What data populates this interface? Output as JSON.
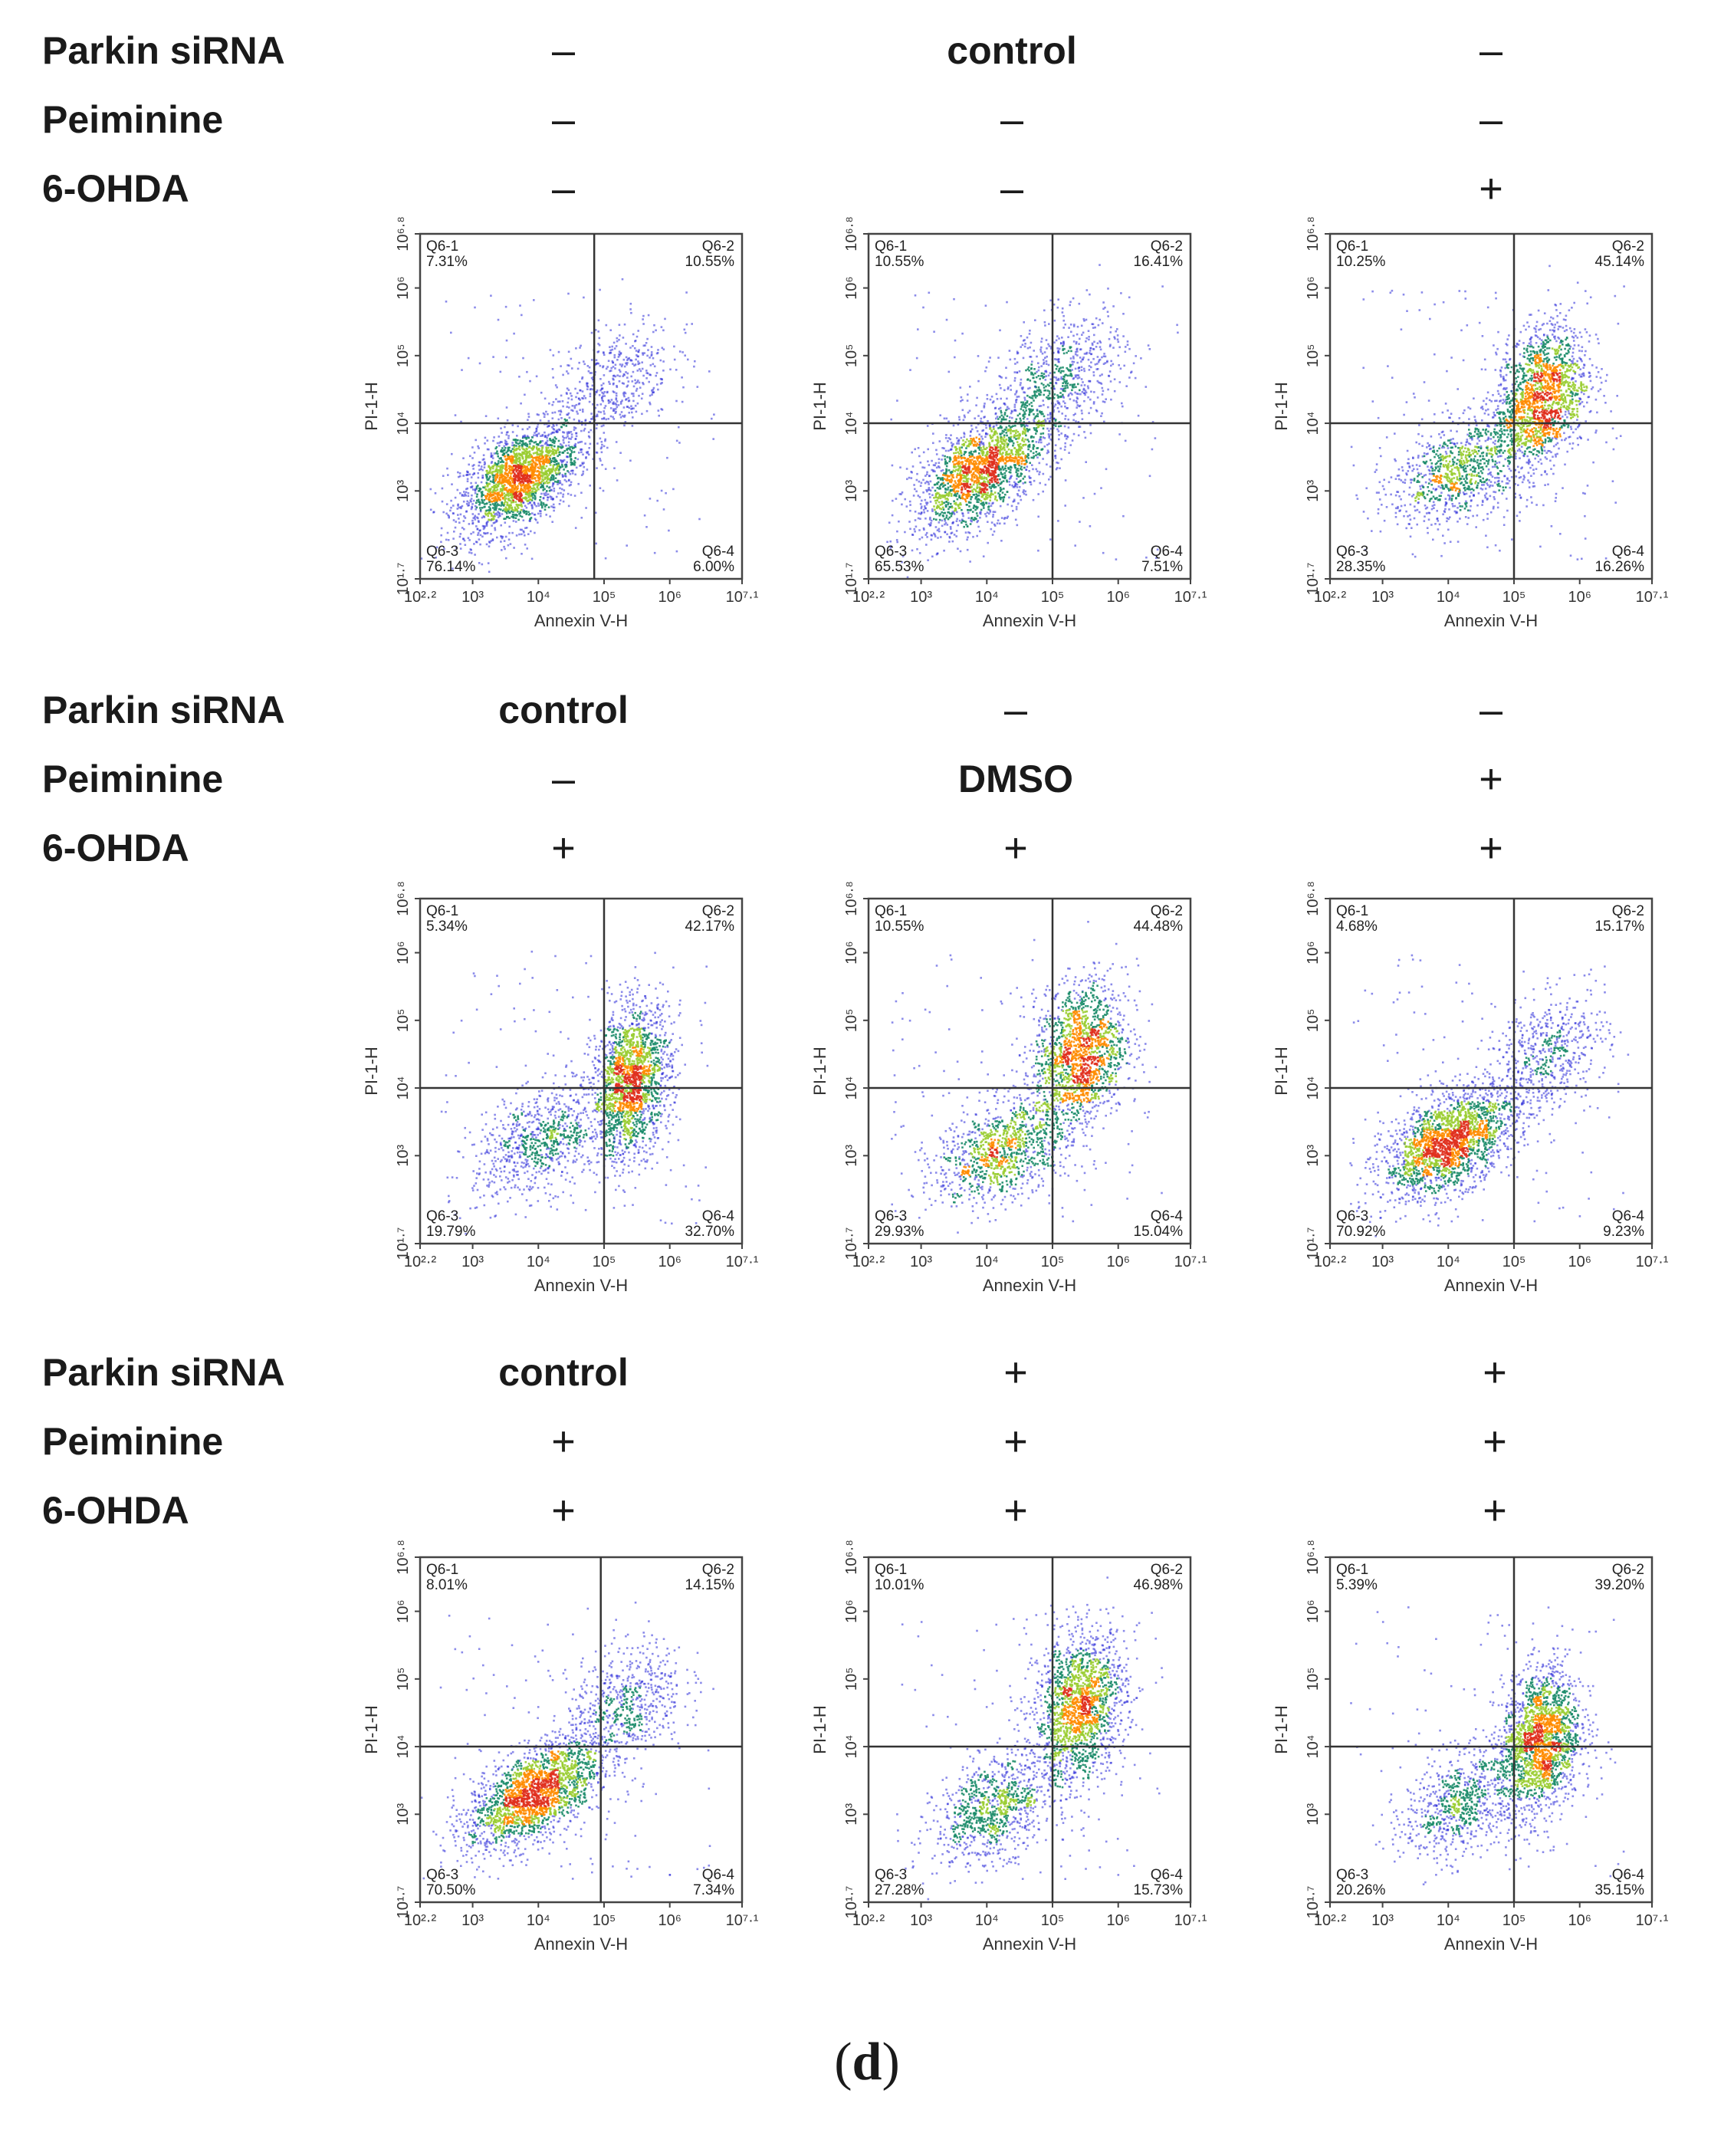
{
  "caption": "d",
  "conditions": {
    "row_labels": [
      "Parkin siRNA",
      "Peiminine",
      "6-OHDA"
    ],
    "groups": [
      [
        [
          "–",
          "–",
          "–"
        ],
        [
          "control",
          "–",
          "–"
        ],
        [
          "–",
          "–",
          "+"
        ]
      ],
      [
        [
          "control",
          "–",
          "+"
        ],
        [
          "–",
          "DMSO",
          "+"
        ],
        [
          "–",
          "+",
          "+"
        ]
      ],
      [
        [
          "control",
          "+",
          "+"
        ],
        [
          "+",
          "+",
          "+"
        ],
        [
          "+",
          "+",
          "+"
        ]
      ]
    ]
  },
  "chart_data": {
    "type": "scatter",
    "subtype": "flow-cytometry-density",
    "xlabel": "Annexin V-H",
    "ylabel": "PI-1-H",
    "x_log_range": [
      2.2,
      7.1
    ],
    "y_log_range": [
      1.7,
      6.8
    ],
    "x_ticks": [
      2.2,
      3,
      4,
      5,
      6,
      7.1
    ],
    "y_ticks": [
      1.7,
      3,
      4,
      5,
      6,
      6.8
    ],
    "x_tick_labels": [
      "10²·²",
      "10³",
      "10⁴",
      "10⁵",
      "10⁶",
      "10⁷·¹"
    ],
    "y_tick_labels": [
      "10¹·⁷",
      "10³",
      "10⁴",
      "10⁵",
      "10⁶",
      "10⁶·⁸"
    ],
    "gate_x_log": 5.0,
    "gate_y_log": 4.0,
    "quadrant_names": [
      "Q6-1",
      "Q6-2",
      "Q6-3",
      "Q6-4"
    ],
    "density_colors": [
      "#2b2bd8",
      "#1c8c6a",
      "#9acd32",
      "#ff8c00",
      "#e0301e"
    ],
    "plots": [
      {
        "q1": "7.31%",
        "q2": "10.55%",
        "q3": "76.14%",
        "q4": "6.00%",
        "x_gate": 4.85,
        "y_gate": 4.0,
        "clusters": [
          {
            "x": 3.7,
            "y": 3.2,
            "sx": 0.45,
            "sy": 0.4,
            "rho": 0.5,
            "w": 0.82
          },
          {
            "x": 5.1,
            "y": 4.6,
            "sx": 0.45,
            "sy": 0.45,
            "rho": 0.4,
            "w": 0.18
          }
        ]
      },
      {
        "q1": "10.55%",
        "q2": "16.41%",
        "q3": "65.53%",
        "q4": "7.51%",
        "x_gate": 5.0,
        "y_gate": 4.0,
        "clusters": [
          {
            "x": 3.9,
            "y": 3.3,
            "sx": 0.5,
            "sy": 0.45,
            "rho": 0.55,
            "w": 0.72
          },
          {
            "x": 5.1,
            "y": 4.6,
            "sx": 0.5,
            "sy": 0.5,
            "rho": 0.4,
            "w": 0.28
          }
        ]
      },
      {
        "q1": "10.25%",
        "q2": "45.14%",
        "q3": "28.35%",
        "q4": "16.26%",
        "x_gate": 5.0,
        "y_gate": 4.0,
        "clusters": [
          {
            "x": 4.1,
            "y": 3.3,
            "sx": 0.5,
            "sy": 0.4,
            "rho": 0.4,
            "w": 0.35
          },
          {
            "x": 5.4,
            "y": 4.4,
            "sx": 0.35,
            "sy": 0.55,
            "rho": 0.3,
            "w": 0.65
          }
        ]
      },
      {
        "q1": "5.34%",
        "q2": "42.17%",
        "q3": "19.79%",
        "q4": "32.70%",
        "x_gate": 5.0,
        "y_gate": 4.0,
        "clusters": [
          {
            "x": 4.0,
            "y": 3.2,
            "sx": 0.5,
            "sy": 0.4,
            "rho": 0.4,
            "w": 0.3
          },
          {
            "x": 5.4,
            "y": 4.1,
            "sx": 0.3,
            "sy": 0.55,
            "rho": 0.2,
            "w": 0.7
          }
        ]
      },
      {
        "q1": "10.55%",
        "q2": "44.48%",
        "q3": "29.93%",
        "q4": "15.04%",
        "x_gate": 5.0,
        "y_gate": 4.0,
        "clusters": [
          {
            "x": 4.2,
            "y": 3.1,
            "sx": 0.5,
            "sy": 0.4,
            "rho": 0.4,
            "w": 0.4
          },
          {
            "x": 5.4,
            "y": 4.5,
            "sx": 0.35,
            "sy": 0.55,
            "rho": 0.2,
            "w": 0.6
          }
        ]
      },
      {
        "q1": "4.68%",
        "q2": "15.17%",
        "q3": "70.92%",
        "q4": "9.23%",
        "x_gate": 5.0,
        "y_gate": 4.0,
        "clusters": [
          {
            "x": 4.0,
            "y": 3.2,
            "sx": 0.5,
            "sy": 0.4,
            "rho": 0.5,
            "w": 0.78
          },
          {
            "x": 5.5,
            "y": 4.5,
            "sx": 0.45,
            "sy": 0.45,
            "rho": 0.4,
            "w": 0.22
          }
        ]
      },
      {
        "q1": "8.01%",
        "q2": "14.15%",
        "q3": "70.50%",
        "q4": "7.34%",
        "x_gate": 4.95,
        "y_gate": 4.0,
        "clusters": [
          {
            "x": 3.9,
            "y": 3.3,
            "sx": 0.5,
            "sy": 0.4,
            "rho": 0.55,
            "w": 0.76
          },
          {
            "x": 5.3,
            "y": 4.6,
            "sx": 0.45,
            "sy": 0.45,
            "rho": 0.4,
            "w": 0.24
          }
        ]
      },
      {
        "q1": "10.01%",
        "q2": "46.98%",
        "q3": "27.28%",
        "q4": "15.73%",
        "x_gate": 5.0,
        "y_gate": 4.0,
        "clusters": [
          {
            "x": 4.1,
            "y": 3.1,
            "sx": 0.45,
            "sy": 0.4,
            "rho": 0.4,
            "w": 0.35
          },
          {
            "x": 5.4,
            "y": 4.6,
            "sx": 0.35,
            "sy": 0.55,
            "rho": 0.2,
            "w": 0.65
          }
        ]
      },
      {
        "q1": "5.39%",
        "q2": "39.20%",
        "q3": "20.26%",
        "q4": "35.15%",
        "x_gate": 5.0,
        "y_gate": 4.0,
        "clusters": [
          {
            "x": 4.2,
            "y": 3.2,
            "sx": 0.45,
            "sy": 0.4,
            "rho": 0.4,
            "w": 0.3
          },
          {
            "x": 5.4,
            "y": 4.1,
            "sx": 0.3,
            "sy": 0.55,
            "rho": 0.2,
            "w": 0.7
          }
        ]
      }
    ]
  }
}
